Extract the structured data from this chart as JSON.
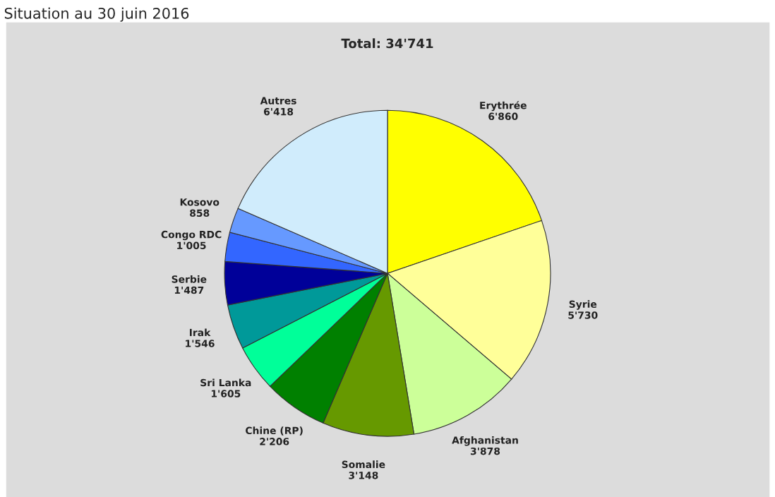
{
  "chart_data": {
    "type": "pie",
    "title": "Total: 34'741",
    "annotations": [
      "Situation au 30 juin 2016"
    ],
    "categories": [
      "Erythrée",
      "Syrie",
      "Afghanistan",
      "Somalie",
      "Chine (RP)",
      "Sri Lanka",
      "Irak",
      "Serbie",
      "Congo RDC",
      "Kosovo",
      "Autres"
    ],
    "values": [
      6860,
      5730,
      3878,
      3148,
      2206,
      1605,
      1546,
      1487,
      1005,
      858,
      6418
    ],
    "value_labels": [
      "6'860",
      "5'730",
      "3'878",
      "3'148",
      "2'206",
      "1'605",
      "1'546",
      "1'487",
      "1'005",
      "858",
      "6'418"
    ],
    "colors": [
      "#ffff00",
      "#ffff99",
      "#ccff99",
      "#669900",
      "#008000",
      "#00ff99",
      "#009999",
      "#000099",
      "#3366ff",
      "#6699ff",
      "#d0ecfc"
    ],
    "legend": false
  }
}
